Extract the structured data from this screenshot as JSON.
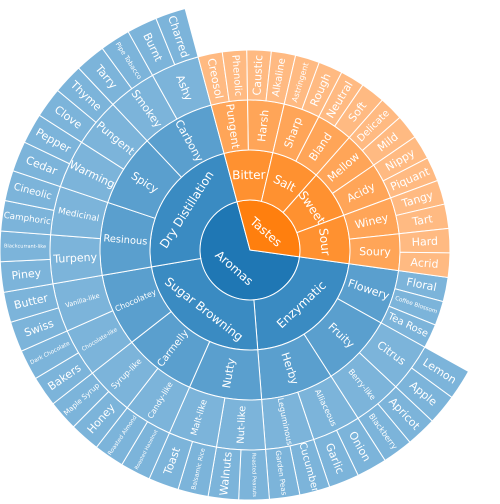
{
  "chart_data": {
    "type": "sunburst",
    "title": "",
    "palette": {
      "Aromas": [
        "#1f77b4",
        "#3a8bc2",
        "#5a9fce",
        "#7cb4da"
      ],
      "Tastes": [
        "#ff7f0e",
        "#ff9130",
        "#ffa558",
        "#ffba82"
      ]
    },
    "root": [
      {
        "name": "Aromas",
        "children": [
          {
            "name": "Enzymatic",
            "children": [
              {
                "name": "Flowery",
                "children": [
                  {
                    "name": "Floral"
                  },
                  {
                    "name": "Coffee Blossom"
                  },
                  {
                    "name": "Tea Rose"
                  }
                ]
              },
              {
                "name": "Fruity",
                "children": [
                  {
                    "name": "Citrus",
                    "children": [
                      {
                        "name": "Lemon"
                      },
                      {
                        "name": "Apple"
                      }
                    ]
                  },
                  {
                    "name": "Berry-like",
                    "children": [
                      {
                        "name": "Apricot"
                      },
                      {
                        "name": "Blackberry"
                      }
                    ]
                  }
                ]
              },
              {
                "name": "Herby",
                "children": [
                  {
                    "name": "Alliaceous",
                    "children": [
                      {
                        "name": "Onion"
                      },
                      {
                        "name": "Garlic"
                      }
                    ]
                  },
                  {
                    "name": "Leguminous",
                    "children": [
                      {
                        "name": "Cucumber"
                      },
                      {
                        "name": "Garden Peas"
                      }
                    ]
                  }
                ]
              }
            ]
          },
          {
            "name": "Sugar Browning",
            "children": [
              {
                "name": "Nutty",
                "children": [
                  {
                    "name": "Nut-like",
                    "children": [
                      {
                        "name": "Roasted Peanuts"
                      },
                      {
                        "name": "Walnuts"
                      }
                    ]
                  },
                  {
                    "name": "Malt-like",
                    "children": [
                      {
                        "name": "Balsamic Rice"
                      },
                      {
                        "name": "Toast"
                      }
                    ]
                  }
                ]
              },
              {
                "name": "Carmelly",
                "children": [
                  {
                    "name": "Candy-like",
                    "children": [
                      {
                        "name": "Roasted Hazelnut"
                      },
                      {
                        "name": "Roasted Almond"
                      }
                    ]
                  },
                  {
                    "name": "Syrup-like",
                    "children": [
                      {
                        "name": "Honey"
                      },
                      {
                        "name": "Maple Syrup"
                      }
                    ]
                  }
                ]
              },
              {
                "name": "Chocolatey",
                "children": [
                  {
                    "name": "Chocolate-like",
                    "children": [
                      {
                        "name": "Bakers"
                      },
                      {
                        "name": "Dark Chocolate"
                      }
                    ]
                  },
                  {
                    "name": "Vanilla-like",
                    "children": [
                      {
                        "name": "Swiss"
                      },
                      {
                        "name": "Butter"
                      }
                    ]
                  }
                ]
              }
            ]
          },
          {
            "name": "Dry Distillation",
            "children": [
              {
                "name": "Resinous",
                "children": [
                  {
                    "name": "Turpeny",
                    "children": [
                      {
                        "name": "Piney"
                      },
                      {
                        "name": "Blackcurrant-like"
                      }
                    ]
                  },
                  {
                    "name": "Medicinal",
                    "children": [
                      {
                        "name": "Camphoric"
                      },
                      {
                        "name": "Cineolic"
                      }
                    ]
                  }
                ]
              },
              {
                "name": "Spicy",
                "children": [
                  {
                    "name": "Warming",
                    "children": [
                      {
                        "name": "Cedar"
                      },
                      {
                        "name": "Pepper"
                      }
                    ]
                  },
                  {
                    "name": "Pungent",
                    "children": [
                      {
                        "name": "Clove"
                      },
                      {
                        "name": "Thyme"
                      }
                    ]
                  }
                ]
              },
              {
                "name": "Carbony",
                "children": [
                  {
                    "name": "Smokey",
                    "children": [
                      {
                        "name": "Tarry"
                      },
                      {
                        "name": "Pipe Tobacco"
                      }
                    ]
                  },
                  {
                    "name": "Ashy",
                    "children": [
                      {
                        "name": "Burnt"
                      },
                      {
                        "name": "Charred"
                      }
                    ]
                  }
                ]
              }
            ]
          }
        ]
      },
      {
        "name": "Tastes",
        "children": [
          {
            "name": "Bitter",
            "children": [
              {
                "name": "Pungent",
                "children": [
                  {
                    "name": "Creosol"
                  },
                  {
                    "name": "Phenolic"
                  }
                ]
              },
              {
                "name": "Harsh",
                "children": [
                  {
                    "name": "Caustic"
                  },
                  {
                    "name": "Alkaline"
                  }
                ]
              }
            ]
          },
          {
            "name": "Salt",
            "children": [
              {
                "name": "Sharp",
                "children": [
                  {
                    "name": "Astringent"
                  },
                  {
                    "name": "Rough"
                  }
                ]
              },
              {
                "name": "Bland",
                "children": [
                  {
                    "name": "Neutral"
                  },
                  {
                    "name": "Soft"
                  }
                ]
              }
            ]
          },
          {
            "name": "Sweet",
            "children": [
              {
                "name": "Mellow",
                "children": [
                  {
                    "name": "Delicate"
                  },
                  {
                    "name": "Mild"
                  }
                ]
              },
              {
                "name": "Acidy",
                "children": [
                  {
                    "name": "Nippy"
                  },
                  {
                    "name": "Piquant"
                  }
                ]
              }
            ]
          },
          {
            "name": "Sour",
            "children": [
              {
                "name": "Winey",
                "children": [
                  {
                    "name": "Tangy"
                  },
                  {
                    "name": "Tart"
                  }
                ]
              },
              {
                "name": "Soury",
                "children": [
                  {
                    "name": "Hard"
                  },
                  {
                    "name": "Acrid"
                  }
                ]
              }
            ]
          }
        ]
      }
    ]
  }
}
